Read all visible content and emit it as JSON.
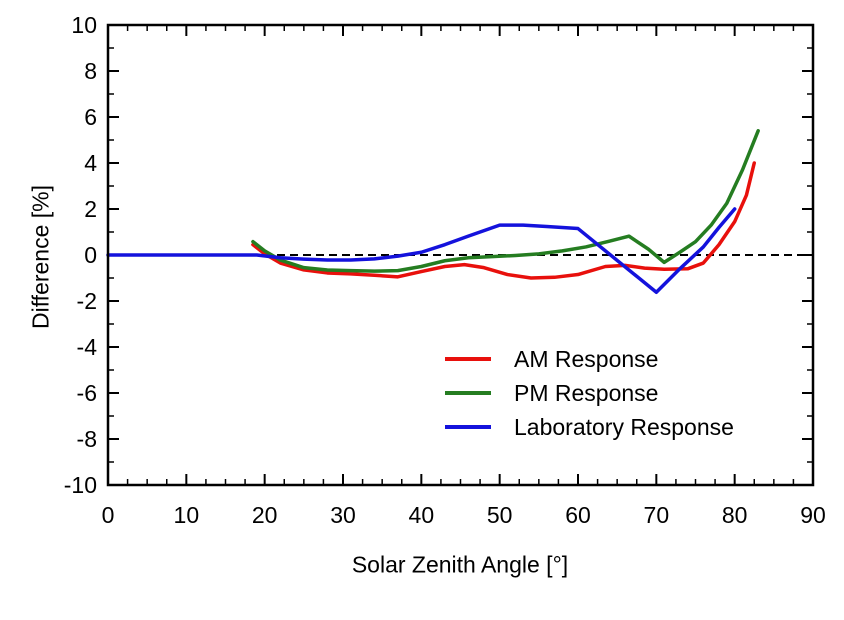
{
  "figure": {
    "background": "#ffffff",
    "frame_color": "#000000"
  },
  "chart_data": {
    "type": "line",
    "title": "",
    "xlabel": "Solar Zenith Angle [°]",
    "ylabel": "Difference [%]",
    "xlim": [
      0,
      90
    ],
    "ylim": [
      -10,
      10
    ],
    "x_major_ticks": [
      0,
      10,
      20,
      30,
      40,
      50,
      60,
      70,
      80,
      90
    ],
    "x_minor_tick_step": 2.5,
    "y_major_ticks": [
      -10,
      -8,
      -6,
      -4,
      -2,
      0,
      2,
      4,
      6,
      8,
      10
    ],
    "y_minor_tick_step": 1,
    "grid": false,
    "reference_line": {
      "y": 0,
      "style": "dashed",
      "color": "#000000"
    },
    "legend": {
      "position": "inside-bottom-center"
    },
    "series": [
      {
        "name": "AM Response",
        "color": "#e8100c",
        "points": [
          [
            18.5,
            0.45
          ],
          [
            20,
            0.05
          ],
          [
            22,
            -0.35
          ],
          [
            25,
            -0.65
          ],
          [
            28,
            -0.78
          ],
          [
            31,
            -0.82
          ],
          [
            34,
            -0.88
          ],
          [
            37,
            -0.95
          ],
          [
            40,
            -0.72
          ],
          [
            43,
            -0.5
          ],
          [
            45.5,
            -0.42
          ],
          [
            48,
            -0.55
          ],
          [
            51,
            -0.85
          ],
          [
            54,
            -1.0
          ],
          [
            57,
            -0.97
          ],
          [
            60,
            -0.85
          ],
          [
            63.5,
            -0.5
          ],
          [
            66,
            -0.45
          ],
          [
            68.5,
            -0.57
          ],
          [
            71,
            -0.62
          ],
          [
            74,
            -0.6
          ],
          [
            76,
            -0.35
          ],
          [
            78,
            0.45
          ],
          [
            80,
            1.45
          ],
          [
            81.5,
            2.6
          ],
          [
            82.5,
            4.0
          ]
        ]
      },
      {
        "name": "PM Response",
        "color": "#257d21",
        "points": [
          [
            18.5,
            0.58
          ],
          [
            20,
            0.18
          ],
          [
            22,
            -0.22
          ],
          [
            25,
            -0.55
          ],
          [
            28,
            -0.65
          ],
          [
            31,
            -0.68
          ],
          [
            34,
            -0.7
          ],
          [
            37,
            -0.68
          ],
          [
            40,
            -0.5
          ],
          [
            43,
            -0.25
          ],
          [
            46,
            -0.12
          ],
          [
            49,
            -0.07
          ],
          [
            52,
            -0.02
          ],
          [
            55,
            0.05
          ],
          [
            58,
            0.18
          ],
          [
            61,
            0.35
          ],
          [
            64,
            0.6
          ],
          [
            66.5,
            0.82
          ],
          [
            69,
            0.25
          ],
          [
            71,
            -0.32
          ],
          [
            73,
            0.12
          ],
          [
            75,
            0.58
          ],
          [
            77,
            1.3
          ],
          [
            79,
            2.25
          ],
          [
            81,
            3.7
          ],
          [
            83,
            5.4
          ]
        ]
      },
      {
        "name": "Laboratory Response",
        "color": "#1412dc",
        "points": [
          [
            0,
            0
          ],
          [
            5,
            0
          ],
          [
            10,
            0
          ],
          [
            15,
            0
          ],
          [
            19,
            0
          ],
          [
            22,
            -0.12
          ],
          [
            25,
            -0.18
          ],
          [
            28,
            -0.22
          ],
          [
            31,
            -0.22
          ],
          [
            34,
            -0.17
          ],
          [
            37,
            -0.05
          ],
          [
            40,
            0.12
          ],
          [
            43,
            0.45
          ],
          [
            46,
            0.82
          ],
          [
            50,
            1.3
          ],
          [
            53,
            1.3
          ],
          [
            56,
            1.24
          ],
          [
            60,
            1.15
          ],
          [
            70,
            -1.62
          ],
          [
            73,
            -0.6
          ],
          [
            76,
            0.35
          ],
          [
            78,
            1.2
          ],
          [
            80,
            2.0
          ]
        ]
      }
    ]
  }
}
